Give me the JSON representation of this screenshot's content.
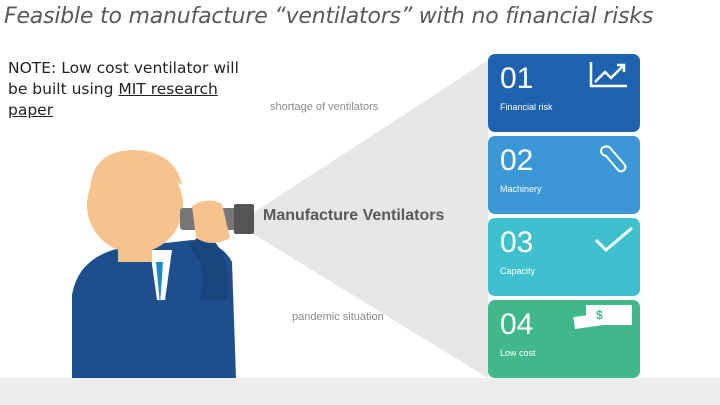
{
  "slide": {
    "title": "Feasible to manufacture “ventilators” with no financial risks",
    "note": {
      "prefix": "NOTE: Low cost ventilator will be built using ",
      "link_text": "MIT research paper"
    },
    "label_top": "shortage of ventilators",
    "label_bottom": "pandemic situation",
    "center_label": "Manufacture Ventilators"
  },
  "cards": [
    {
      "number": "01",
      "label": "Financial risk",
      "color": "#1f62b0",
      "icon": "chart-up-icon"
    },
    {
      "number": "02",
      "label": "Machinery",
      "color": "#3b97d6",
      "icon": "wrench-icon"
    },
    {
      "number": "03",
      "label": "Capacity",
      "color": "#3fc0cf",
      "icon": "checkmark-icon"
    },
    {
      "number": "04",
      "label": "Low cost",
      "color": "#40b88a",
      "icon": "money-icon"
    }
  ]
}
